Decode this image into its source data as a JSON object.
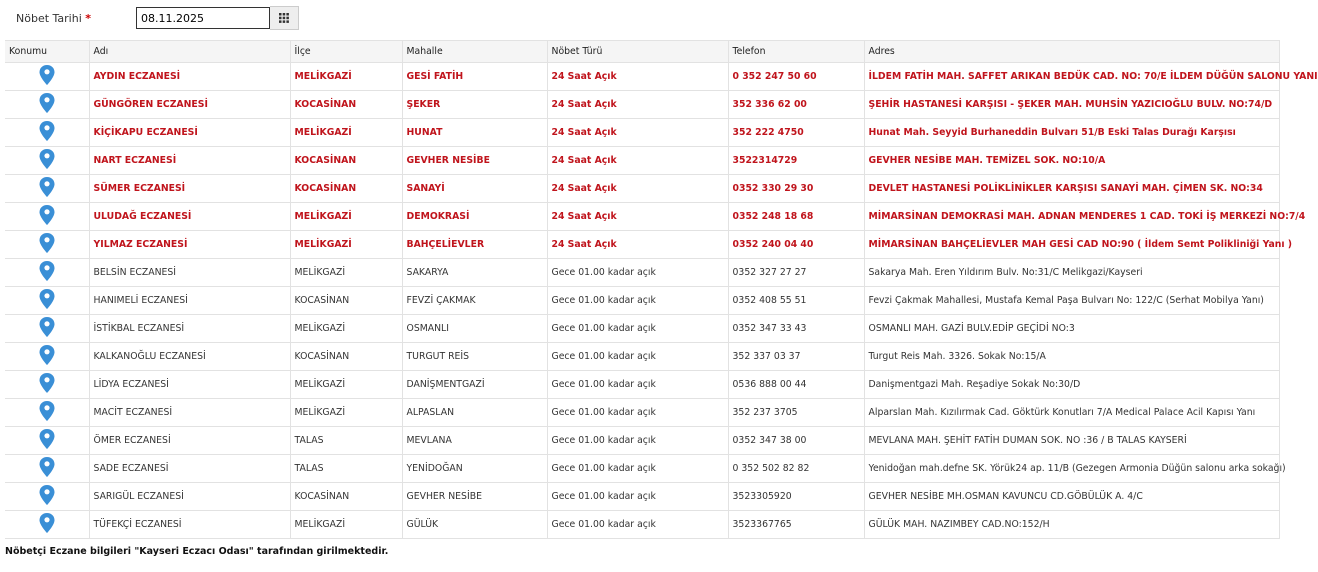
{
  "filter": {
    "label": "Nöbet Tarihi",
    "required_mark": "*",
    "date_value": "08.11.2025",
    "calendar_icon": "calendar-grid-icon"
  },
  "table": {
    "headers": [
      "Konumu",
      "Adı",
      "İlçe",
      "Mahalle",
      "Nöbet Türü",
      "Telefon",
      "Adres"
    ],
    "highlight_color": "#c0141c",
    "location_icon": "map-pin-icon",
    "rows": [
      {
        "name": "AYDIN ECZANESİ",
        "district": "MELİKGAZİ",
        "neighborhood": "GESİ FATİH",
        "type": "24 Saat Açık",
        "phone": "0 352 247 50 60",
        "address": "İLDEM FATİH MAH. SAFFET ARIKAN BEDÜK CAD. NO: 70/E İLDEM DÜĞÜN SALONU YANI",
        "h24": true
      },
      {
        "name": "GÜNGÖREN ECZANESİ",
        "district": "KOCASİNAN",
        "neighborhood": "ŞEKER",
        "type": "24 Saat Açık",
        "phone": "352 336 62 00",
        "address": "ŞEHİR HASTANESİ KARŞISI - ŞEKER MAH. MUHSİN YAZICIOĞLU BULV. NO:74/D",
        "h24": true
      },
      {
        "name": "KİÇİKAPU ECZANESİ",
        "district": "MELİKGAZİ",
        "neighborhood": "HUNAT",
        "type": "24 Saat Açık",
        "phone": "352 222 4750",
        "address": "Hunat Mah. Seyyid Burhaneddin Bulvarı 51/B Eski Talas Durağı Karşısı",
        "h24": true
      },
      {
        "name": "NART ECZANESİ",
        "district": "KOCASİNAN",
        "neighborhood": "GEVHER NESİBE",
        "type": "24 Saat Açık",
        "phone": "3522314729",
        "address": "GEVHER NESİBE MAH. TEMİZEL SOK. NO:10/A",
        "h24": true
      },
      {
        "name": "SÜMER ECZANESİ",
        "district": "KOCASİNAN",
        "neighborhood": "SANAYİ",
        "type": "24 Saat Açık",
        "phone": "0352 330 29 30",
        "address": "DEVLET HASTANESİ POLİKLİNİKLER KARŞISI SANAYİ MAH. ÇİMEN SK. NO:34",
        "h24": true
      },
      {
        "name": "ULUDAĞ ECZANESİ",
        "district": "MELİKGAZİ",
        "neighborhood": "DEMOKRASİ",
        "type": "24 Saat Açık",
        "phone": "0352 248 18 68",
        "address": "MİMARSİNAN DEMOKRASİ MAH. ADNAN MENDERES 1 CAD. TOKİ İŞ MERKEZİ NO:7/4",
        "h24": true
      },
      {
        "name": "YILMAZ ECZANESİ",
        "district": "MELİKGAZİ",
        "neighborhood": "BAHÇELİEVLER",
        "type": "24 Saat Açık",
        "phone": "0352 240 04 40",
        "address": "MİMARSİNAN BAHÇELİEVLER MAH GESİ CAD NO:90 ( İldem Semt Polikliniği Yanı )",
        "h24": true
      },
      {
        "name": "BELSİN ECZANESİ",
        "district": "MELİKGAZİ",
        "neighborhood": "SAKARYA",
        "type": "Gece 01.00 kadar açık",
        "phone": "0352 327 27 27",
        "address": "Sakarya Mah. Eren Yıldırım Bulv. No:31/C Melikgazi/Kayseri",
        "h24": false
      },
      {
        "name": "HANIMELİ ECZANESİ",
        "district": "KOCASİNAN",
        "neighborhood": "FEVZİ ÇAKMAK",
        "type": "Gece 01.00 kadar açık",
        "phone": "0352 408 55 51",
        "address": "Fevzi Çakmak Mahallesi, Mustafa Kemal Paşa Bulvarı No: 122/C (Serhat Mobilya Yanı)",
        "h24": false
      },
      {
        "name": "İSTİKBAL ECZANESİ",
        "district": "MELİKGAZİ",
        "neighborhood": "OSMANLI",
        "type": "Gece 01.00 kadar açık",
        "phone": "0352 347 33 43",
        "address": "OSMANLI MAH. GAZİ BULV.EDİP GEÇİDİ NO:3",
        "h24": false
      },
      {
        "name": "KALKANOĞLU ECZANESİ",
        "district": "KOCASİNAN",
        "neighborhood": "TURGUT REİS",
        "type": "Gece 01.00 kadar açık",
        "phone": "352 337 03 37",
        "address": "Turgut Reis Mah. 3326. Sokak No:15/A",
        "h24": false
      },
      {
        "name": "LİDYA ECZANESİ",
        "district": "MELİKGAZİ",
        "neighborhood": "DANİŞMENTGAZİ",
        "type": "Gece 01.00 kadar açık",
        "phone": "0536 888 00 44",
        "address": "Danişmentgazi Mah. Reşadiye Sokak No:30/D",
        "h24": false
      },
      {
        "name": "MACİT ECZANESİ",
        "district": "MELİKGAZİ",
        "neighborhood": "ALPASLAN",
        "type": "Gece 01.00 kadar açık",
        "phone": "352 237 3705",
        "address": "Alparslan Mah. Kızılırmak Cad. Göktürk Konutları 7/A Medical Palace Acil Kapısı Yanı",
        "h24": false
      },
      {
        "name": "ÖMER ECZANESİ",
        "district": "TALAS",
        "neighborhood": "MEVLANA",
        "type": "Gece 01.00 kadar açık",
        "phone": "0352 347 38 00",
        "address": "MEVLANA MAH. ŞEHİT FATİH DUMAN SOK. NO :36 / B TALAS KAYSERİ",
        "h24": false
      },
      {
        "name": "SADE ECZANESİ",
        "district": "TALAS",
        "neighborhood": "YENİDOĞAN",
        "type": "Gece 01.00 kadar açık",
        "phone": "0 352 502 82 82",
        "address": "Yenidoğan mah.defne SK. Yörük24 ap. 11/B (Gezegen Armonia Düğün salonu arka sokağı)",
        "h24": false
      },
      {
        "name": "SARIGÜL ECZANESİ",
        "district": "KOCASİNAN",
        "neighborhood": "GEVHER NESİBE",
        "type": "Gece 01.00 kadar açık",
        "phone": "3523305920",
        "address": "GEVHER NESİBE MH.OSMAN KAVUNCU CD.GÖBÜLÜK A. 4/C",
        "h24": false
      },
      {
        "name": "TÜFEKÇİ ECZANESİ",
        "district": "MELİKGAZİ",
        "neighborhood": "GÜLÜK",
        "type": "Gece 01.00 kadar açık",
        "phone": "3523367765",
        "address": "GÜLÜK MAH. NAZIMBEY CAD.NO:152/H",
        "h24": false
      }
    ]
  },
  "footer": {
    "text": "Nöbetçi Eczane bilgileri \"Kayseri Eczacı Odası\" tarafından girilmektedir."
  }
}
